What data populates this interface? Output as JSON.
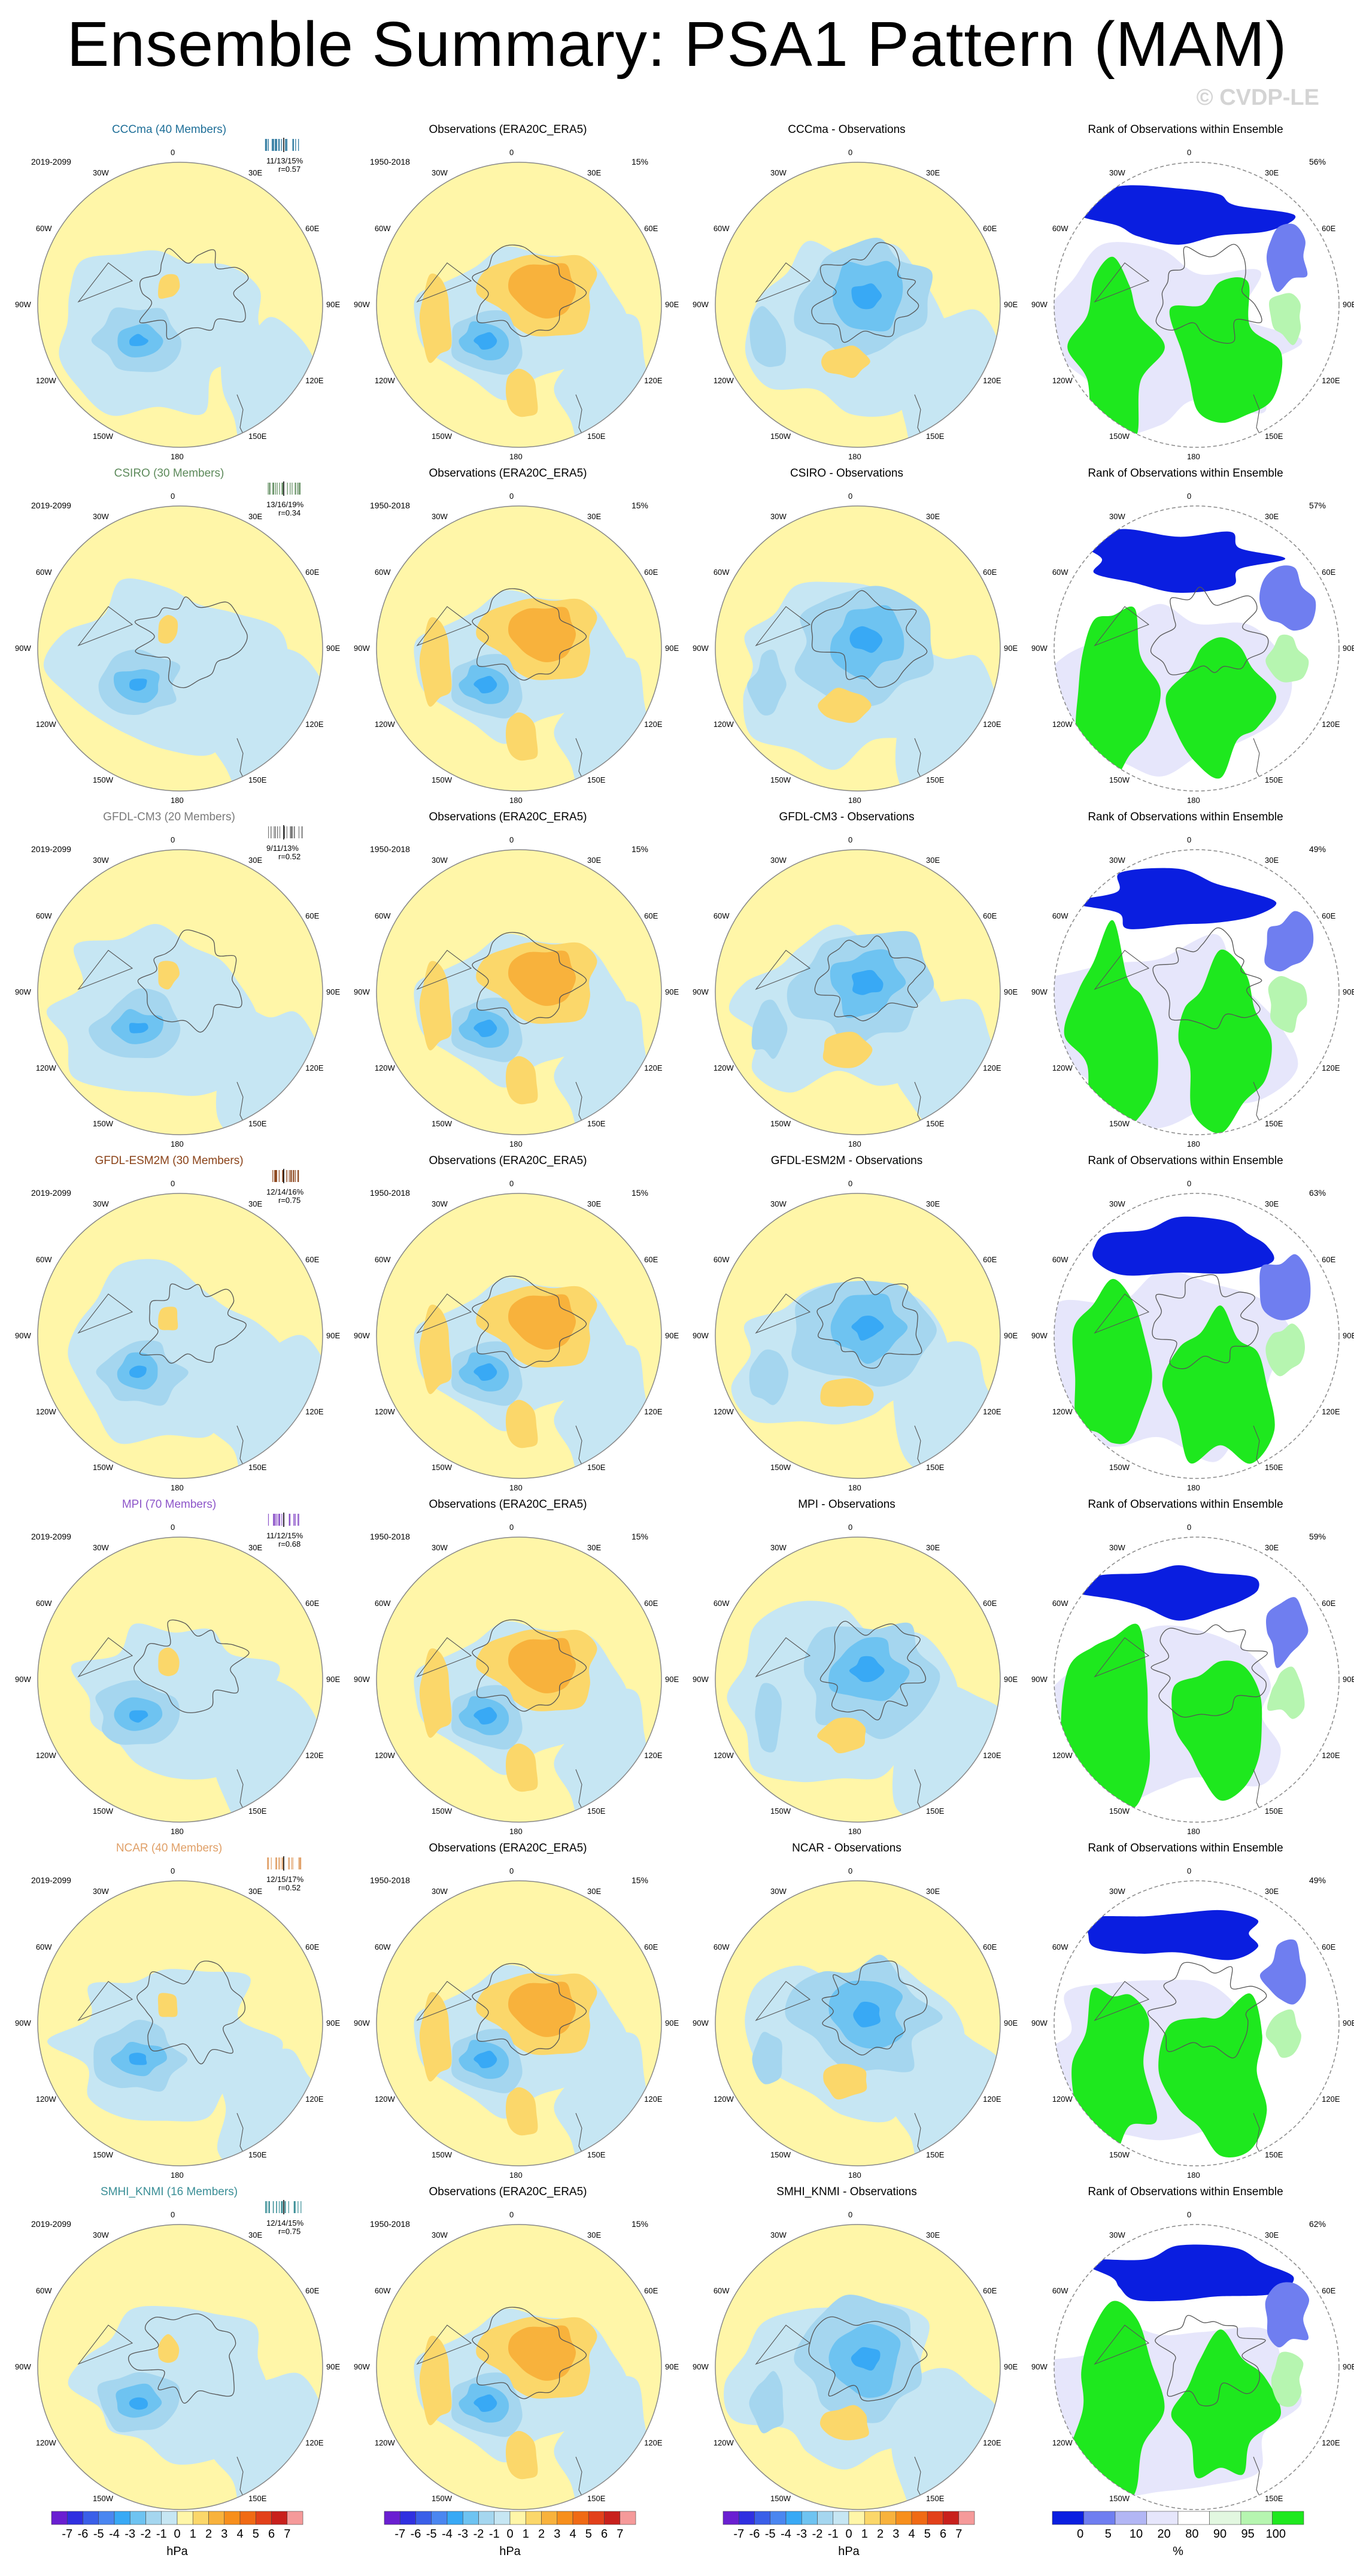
{
  "title": "Ensemble Summary: PSA1 Pattern (MAM)",
  "watermark": "© CVDP-LE",
  "observations": {
    "title": "Observations (ERA20C_ERA5)",
    "years": "1950-2018",
    "pct": "15%"
  },
  "rank_title": "Rank of Observations within Ensemble",
  "model_years": "2019-2099",
  "longitude_labels": [
    "0",
    "30E",
    "60E",
    "90E",
    "120E",
    "150E",
    "180",
    "150W",
    "120W",
    "90W",
    "60W",
    "30W"
  ],
  "models": [
    {
      "name": "CCCma",
      "label": "CCCma (40 Members)",
      "diff_title": "CCCma - Observations",
      "stats": "11/13/15%",
      "r": "r=0.57",
      "rank_pct": "56%",
      "color": "#1f6f98"
    },
    {
      "name": "CSIRO",
      "label": "CSIRO (30 Members)",
      "diff_title": "CSIRO - Observations",
      "stats": "13/16/19%",
      "r": "r=0.34",
      "rank_pct": "57%",
      "color": "#5d8a5b"
    },
    {
      "name": "GFDL-CM3",
      "label": "GFDL-CM3 (20 Members)",
      "diff_title": "GFDL-CM3 - Observations",
      "stats": "9/11/13%",
      "r": "r=0.52",
      "rank_pct": "49%",
      "color": "#7a7a7a"
    },
    {
      "name": "GFDL-ESM2M",
      "label": "GFDL-ESM2M (30 Members)",
      "diff_title": "GFDL-ESM2M - Observations",
      "stats": "12/14/16%",
      "r": "r=0.75",
      "rank_pct": "63%",
      "color": "#8a4218"
    },
    {
      "name": "MPI",
      "label": "MPI (70 Members)",
      "diff_title": "MPI - Observations",
      "stats": "11/12/15%",
      "r": "r=0.68",
      "rank_pct": "59%",
      "color": "#8d55c9"
    },
    {
      "name": "NCAR",
      "label": "NCAR (40 Members)",
      "diff_title": "NCAR - Observations",
      "stats": "12/15/17%",
      "r": "r=0.52",
      "rank_pct": "49%",
      "color": "#e0a068"
    },
    {
      "name": "SMHI_KNMI",
      "label": "SMHI_KNMI (16 Members)",
      "diff_title": "SMHI_KNMI - Observations",
      "stats": "12/14/15%",
      "r": "r=0.75",
      "rank_pct": "62%",
      "color": "#3a8e96"
    }
  ],
  "colorbar_hpa": {
    "labels": [
      "-7",
      "-6",
      "-5",
      "-4",
      "-3",
      "-2",
      "-1",
      "0",
      "1",
      "2",
      "3",
      "4",
      "5",
      "6",
      "7"
    ],
    "colors": [
      "#6a1fd1",
      "#3030e0",
      "#3a5fe8",
      "#4a86f0",
      "#38a9f5",
      "#6ec3f1",
      "#a5d6ef",
      "#c6e6f3",
      "#fff6a8",
      "#fbd76a",
      "#f8b23c",
      "#f78f1c",
      "#f06a14",
      "#e2401a",
      "#c8201c",
      "#f59a9a"
    ],
    "unit": "hPa"
  },
  "colorbar_rank": {
    "labels": [
      "0",
      "5",
      "10",
      "20",
      "80",
      "90",
      "95",
      "100"
    ],
    "colors": [
      "#0a1ee0",
      "#6f7ef0",
      "#b2b6f4",
      "#e6e6fb",
      "#ffffff",
      "#e2f7e0",
      "#b6f5b0",
      "#1ee81e"
    ],
    "unit": "%"
  }
}
